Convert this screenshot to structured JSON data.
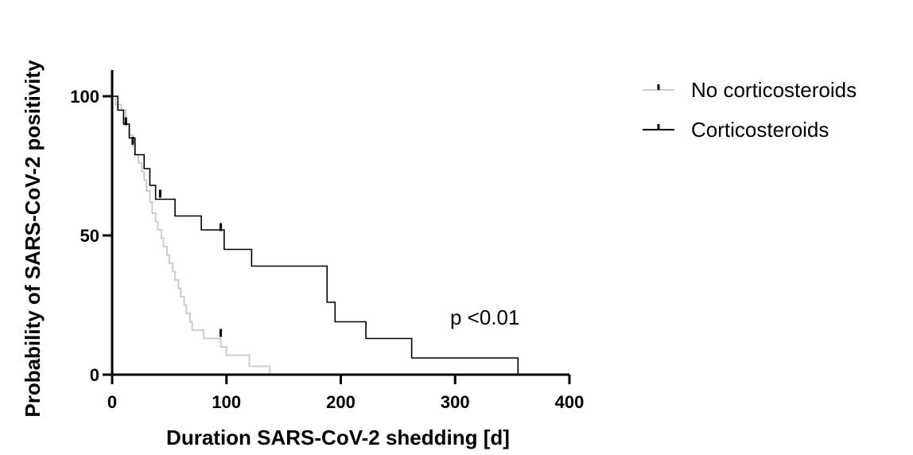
{
  "chart_data": {
    "type": "line",
    "subtype": "kaplan-meier",
    "title": "",
    "xlabel": "Duration SARS-CoV-2  shedding [d]",
    "ylabel": "Probability of SARS-CoV-2 positivity",
    "xlim": [
      0,
      400
    ],
    "ylim": [
      0,
      100
    ],
    "xticks": [
      "0",
      "100",
      "200",
      "300",
      "400"
    ],
    "yticks": [
      "0",
      "50",
      "100"
    ],
    "grid": false,
    "legend_position": "top-right",
    "annotation": "p <0.01",
    "series": [
      {
        "name": "No corticosteroids",
        "color": "#cccccc",
        "x": [
          0,
          3,
          8,
          12,
          15,
          18,
          20,
          23,
          26,
          28,
          30,
          33,
          35,
          38,
          40,
          43,
          45,
          48,
          50,
          53,
          55,
          58,
          60,
          63,
          65,
          68,
          70,
          75,
          80,
          85,
          90,
          95,
          100,
          120,
          138
        ],
        "y": [
          100,
          97,
          95,
          90,
          86,
          82,
          79,
          76,
          73,
          70,
          66,
          62,
          58,
          55,
          52,
          49,
          46,
          43,
          40,
          37,
          34,
          31,
          28,
          25,
          22,
          19,
          16,
          16,
          13,
          13,
          13,
          10,
          7,
          3,
          0
        ],
        "censored": [
          {
            "x": 95,
            "y": 15
          }
        ]
      },
      {
        "name": "Corticosteroids",
        "color": "#000000",
        "x": [
          0,
          5,
          10,
          15,
          20,
          28,
          33,
          38,
          48,
          55,
          78,
          95,
          98,
          122,
          188,
          195,
          222,
          262,
          355
        ],
        "y": [
          100,
          95,
          90,
          85,
          79,
          74,
          68,
          63,
          63,
          57,
          52,
          52,
          45,
          39,
          26,
          19,
          13,
          6,
          0
        ],
        "censored": [
          {
            "x": 12,
            "y": 91
          },
          {
            "x": 18,
            "y": 84
          },
          {
            "x": 42,
            "y": 65
          },
          {
            "x": 95,
            "y": 53
          }
        ]
      }
    ]
  }
}
